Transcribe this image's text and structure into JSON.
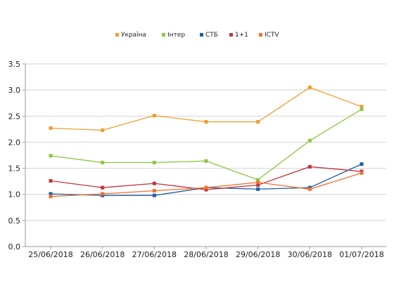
{
  "chart_data": {
    "type": "line",
    "title": "",
    "xlabel": "",
    "ylabel": "",
    "categories": [
      "25/06/2018",
      "26/06/2018",
      "27/06/2018",
      "28/06/2018",
      "29/06/2018",
      "30/06/2018",
      "01/07/2018"
    ],
    "ylim": [
      0,
      3.5
    ],
    "yticks": [
      "0.0",
      "0.5",
      "1.0",
      "1.5",
      "2.0",
      "2.5",
      "3.0",
      "3.5"
    ],
    "grid": "horizontal",
    "legend_position": "top",
    "series": [
      {
        "name": "Україна",
        "color": "#f39c2f",
        "values": [
          2.27,
          2.23,
          2.51,
          2.39,
          2.39,
          3.05,
          2.68
        ]
      },
      {
        "name": "Інтер",
        "color": "#8dc63f",
        "values": [
          1.74,
          1.61,
          1.61,
          1.64,
          1.28,
          2.03,
          2.63
        ]
      },
      {
        "name": "СТБ",
        "color": "#1a5fa8",
        "values": [
          1.01,
          0.98,
          0.98,
          1.13,
          1.1,
          1.13,
          1.58
        ]
      },
      {
        "name": "1+1",
        "color": "#c0343d",
        "values": [
          1.26,
          1.13,
          1.21,
          1.09,
          1.18,
          1.53,
          1.44
        ]
      },
      {
        "name": "ICTV",
        "color": "#f36f2f",
        "values": [
          0.96,
          1.01,
          1.07,
          1.13,
          1.23,
          1.1,
          1.41
        ]
      }
    ]
  }
}
